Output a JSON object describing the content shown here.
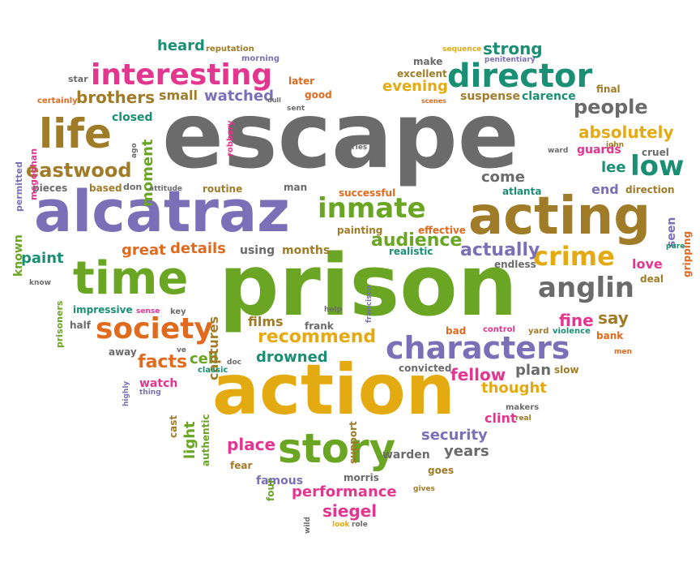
{
  "palette": {
    "gray": "#6b6b6b",
    "purple": "#7b6fb8",
    "green": "#6aa524",
    "gold": "#e3aa12",
    "olive": "#a07b28",
    "pink": "#e2368f",
    "teal": "#1a8f73",
    "orange": "#e06a1e"
  },
  "words": [
    {
      "text": "escape",
      "color": "gray"
    },
    {
      "text": "prison",
      "color": "green"
    },
    {
      "text": "action",
      "color": "gold"
    },
    {
      "text": "alcatraz",
      "color": "purple"
    },
    {
      "text": "time",
      "color": "green"
    },
    {
      "text": "acting",
      "color": "olive"
    },
    {
      "text": "story",
      "color": "green"
    },
    {
      "text": "director",
      "color": "teal"
    },
    {
      "text": "interesting",
      "color": "pink"
    },
    {
      "text": "life",
      "color": "olive"
    },
    {
      "text": "characters",
      "color": "purple"
    },
    {
      "text": "inmate",
      "color": "green"
    },
    {
      "text": "society",
      "color": "orange"
    },
    {
      "text": "anglin",
      "color": "gray"
    },
    {
      "text": "crime",
      "color": "gold"
    },
    {
      "text": "low",
      "color": "teal"
    },
    {
      "text": "eastwood",
      "color": "olive"
    },
    {
      "text": "brothers",
      "color": "olive"
    },
    {
      "text": "people",
      "color": "gray"
    },
    {
      "text": "recommend",
      "color": "gold"
    },
    {
      "text": "facts",
      "color": "orange"
    },
    {
      "text": "audience",
      "color": "green"
    },
    {
      "text": "actually",
      "color": "purple"
    },
    {
      "text": "security",
      "color": "purple"
    },
    {
      "text": "place",
      "color": "pink"
    },
    {
      "text": "performance",
      "color": "pink"
    },
    {
      "text": "siegel",
      "color": "pink"
    },
    {
      "text": "absolutely",
      "color": "gold"
    },
    {
      "text": "thought",
      "color": "gold"
    },
    {
      "text": "great",
      "color": "orange"
    },
    {
      "text": "details",
      "color": "orange"
    },
    {
      "text": "years",
      "color": "gray"
    },
    {
      "text": "fellow",
      "color": "pink"
    },
    {
      "text": "strong",
      "color": "teal"
    },
    {
      "text": "evening",
      "color": "gold"
    },
    {
      "text": "heard",
      "color": "teal"
    },
    {
      "text": "watched",
      "color": "purple"
    },
    {
      "text": "drowned",
      "color": "teal"
    },
    {
      "text": "films",
      "color": "olive"
    },
    {
      "text": "paint",
      "color": "teal"
    },
    {
      "text": "moment",
      "color": "green"
    },
    {
      "text": "fine",
      "color": "pink"
    },
    {
      "text": "say",
      "color": "olive"
    },
    {
      "text": "plan",
      "color": "gray"
    },
    {
      "text": "clint",
      "color": "pink"
    },
    {
      "text": "cell",
      "color": "green"
    },
    {
      "text": "light",
      "color": "green"
    },
    {
      "text": "come",
      "color": "gray"
    },
    {
      "text": "lee",
      "color": "teal"
    },
    {
      "text": "end",
      "color": "purple"
    },
    {
      "text": "love",
      "color": "pink"
    },
    {
      "text": "guards",
      "color": "pink"
    },
    {
      "text": "suspense",
      "color": "olive"
    },
    {
      "text": "small",
      "color": "olive"
    },
    {
      "text": "using",
      "color": "gray"
    },
    {
      "text": "months",
      "color": "olive"
    },
    {
      "text": "captures",
      "color": "olive"
    },
    {
      "text": "known",
      "color": "green"
    },
    {
      "text": "story_",
      "color": "green"
    },
    {
      "text": "seen",
      "color": "purple"
    },
    {
      "text": "gripping",
      "color": "orange"
    },
    {
      "text": "watch",
      "color": "pink"
    },
    {
      "text": "warden",
      "color": "gray"
    },
    {
      "text": "famous",
      "color": "purple"
    },
    {
      "text": "morris",
      "color": "gray"
    },
    {
      "text": "goes",
      "color": "olive"
    },
    {
      "text": "frank",
      "color": "gray"
    },
    {
      "text": "convicted",
      "color": "gray"
    },
    {
      "text": "slow",
      "color": "olive"
    },
    {
      "text": "bank",
      "color": "orange"
    },
    {
      "text": "bad",
      "color": "orange"
    },
    {
      "text": "later",
      "color": "orange"
    },
    {
      "text": "good",
      "color": "orange"
    },
    {
      "text": "clarence",
      "color": "teal"
    },
    {
      "text": "excellent",
      "color": "olive"
    },
    {
      "text": "make",
      "color": "gray"
    },
    {
      "text": "final",
      "color": "olive"
    },
    {
      "text": "cruel",
      "color": "gray"
    },
    {
      "text": "direction",
      "color": "olive"
    },
    {
      "text": "atlanta",
      "color": "teal"
    },
    {
      "text": "successful",
      "color": "orange"
    },
    {
      "text": "painting",
      "color": "olive"
    },
    {
      "text": "effective",
      "color": "orange"
    },
    {
      "text": "realistic",
      "color": "teal"
    },
    {
      "text": "endless",
      "color": "gray"
    },
    {
      "text": "deal",
      "color": "olive"
    },
    {
      "text": "based",
      "color": "olive"
    },
    {
      "text": "don",
      "color": "gray"
    },
    {
      "text": "routine",
      "color": "olive"
    },
    {
      "text": "man",
      "color": "gray"
    },
    {
      "text": "pieces",
      "color": "gray"
    },
    {
      "text": "closed",
      "color": "teal"
    },
    {
      "text": "impressive",
      "color": "teal"
    },
    {
      "text": "half",
      "color": "gray"
    },
    {
      "text": "away",
      "color": "gray"
    },
    {
      "text": "key",
      "color": "gray"
    },
    {
      "text": "classic",
      "color": "teal"
    },
    {
      "text": "cast",
      "color": "olive"
    },
    {
      "text": "authentic",
      "color": "green"
    },
    {
      "text": "fear",
      "color": "olive"
    },
    {
      "text": "four",
      "color": "green"
    },
    {
      "text": "support",
      "color": "olive"
    },
    {
      "text": "makers",
      "color": "gray"
    },
    {
      "text": "control",
      "color": "pink"
    },
    {
      "text": "yard",
      "color": "olive"
    },
    {
      "text": "violence",
      "color": "teal"
    },
    {
      "text": "star",
      "color": "gray"
    },
    {
      "text": "certainly",
      "color": "orange"
    },
    {
      "text": "reputation",
      "color": "olive"
    },
    {
      "text": "morning",
      "color": "purple"
    },
    {
      "text": "sequence",
      "color": "gold"
    },
    {
      "text": "penitentiary",
      "color": "purple"
    },
    {
      "text": "scenes",
      "color": "orange"
    },
    {
      "text": "dull",
      "color": "gray"
    },
    {
      "text": "sent",
      "color": "gray"
    },
    {
      "text": "robbery",
      "color": "pink"
    },
    {
      "text": "ago",
      "color": "gray"
    },
    {
      "text": "attitude",
      "color": "gray"
    },
    {
      "text": "tries",
      "color": "gray"
    },
    {
      "text": "ward",
      "color": "gray"
    },
    {
      "text": "john",
      "color": "olive"
    },
    {
      "text": "permitted",
      "color": "purple"
    },
    {
      "text": "mcgoohan",
      "color": "pink"
    },
    {
      "text": "know",
      "color": "gray"
    },
    {
      "text": "prisoners",
      "color": "green"
    },
    {
      "text": "sense",
      "color": "pink"
    },
    {
      "text": "help",
      "color": "gray"
    },
    {
      "text": "francisco",
      "color": "purple"
    },
    {
      "text": "ve",
      "color": "gray"
    },
    {
      "text": "doc",
      "color": "gray"
    },
    {
      "text": "highly",
      "color": "purple"
    },
    {
      "text": "thing",
      "color": "purple"
    },
    {
      "text": "real",
      "color": "olive"
    },
    {
      "text": "gives",
      "color": "olive"
    },
    {
      "text": "look",
      "color": "gold"
    },
    {
      "text": "role",
      "color": "gray"
    },
    {
      "text": "wild",
      "color": "gray"
    },
    {
      "text": "men",
      "color": "orange"
    },
    {
      "text": "pure",
      "color": "teal"
    }
  ]
}
